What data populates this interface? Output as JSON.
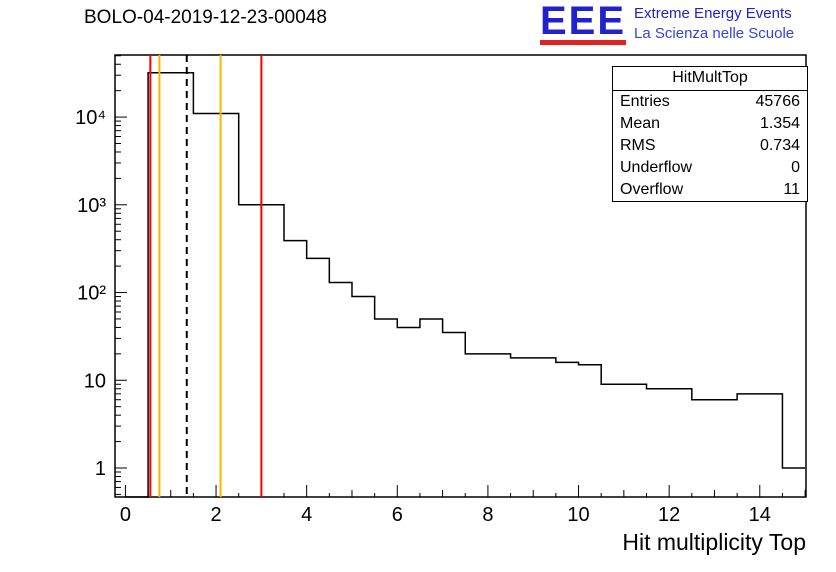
{
  "header": {
    "title": "BOLO-04-2019-12-23-00048"
  },
  "logo": {
    "eee": "EEE",
    "line1": "Extreme Energy Events",
    "line2": "La Scienza nelle Scuole",
    "blue": "#2222cc",
    "red": "#dd2222"
  },
  "stats": {
    "title": "HitMultTop",
    "rows": [
      {
        "label": "Entries",
        "value": "45766"
      },
      {
        "label": "Mean",
        "value": "1.354"
      },
      {
        "label": "RMS",
        "value": "0.734"
      },
      {
        "label": "Underflow",
        "value": "0"
      },
      {
        "label": "Overflow",
        "value": "11"
      }
    ]
  },
  "chart_data": {
    "type": "bar",
    "subtype": "histogram-step",
    "series_name": "HitMultTop",
    "title": "BOLO-04-2019-12-23-00048",
    "xlabel": "Hit multiplicity Top",
    "ylabel": "",
    "yscale": "log",
    "grid": false,
    "x_range": [
      -0.23,
      15.02
    ],
    "y_range": [
      0.467,
      51000
    ],
    "line_color": "#000000",
    "bins": [
      [
        0.5,
        1.5,
        32000
      ],
      [
        1.5,
        2.5,
        11000
      ],
      [
        2.5,
        3.5,
        1000
      ],
      [
        3.5,
        4.0,
        390
      ],
      [
        4.0,
        4.5,
        245
      ],
      [
        4.5,
        5.0,
        130
      ],
      [
        5.0,
        5.5,
        90
      ],
      [
        5.5,
        6.0,
        50
      ],
      [
        6.0,
        6.5,
        40
      ],
      [
        6.5,
        7.0,
        50
      ],
      [
        7.0,
        7.5,
        35
      ],
      [
        7.5,
        8.5,
        20
      ],
      [
        8.5,
        9.5,
        18
      ],
      [
        9.5,
        10.0,
        16
      ],
      [
        10.0,
        10.5,
        15
      ],
      [
        10.5,
        11.5,
        9
      ],
      [
        11.5,
        12.5,
        8
      ],
      [
        12.5,
        13.5,
        6
      ],
      [
        13.5,
        14.5,
        7
      ],
      [
        14.5,
        15.0,
        1
      ]
    ],
    "markers": [
      {
        "x": 0.55,
        "color": "#ff0000",
        "dash": false
      },
      {
        "x": 0.75,
        "color": "#ffb300",
        "dash": false
      },
      {
        "x": 1.354,
        "color": "#000000",
        "dash": true
      },
      {
        "x": 2.1,
        "color": "#ffb300",
        "dash": false
      },
      {
        "x": 3.0,
        "color": "#ff0000",
        "dash": false
      }
    ],
    "x_tick_labels": [
      0,
      2,
      4,
      6,
      8,
      10,
      12,
      14
    ],
    "y_tick_labels": [
      {
        "v": 1,
        "label": "1"
      },
      {
        "v": 10,
        "label": "10"
      },
      {
        "v": 100,
        "label": "10²"
      },
      {
        "v": 1000,
        "label": "10³"
      },
      {
        "v": 10000,
        "label": "10⁴"
      }
    ]
  }
}
